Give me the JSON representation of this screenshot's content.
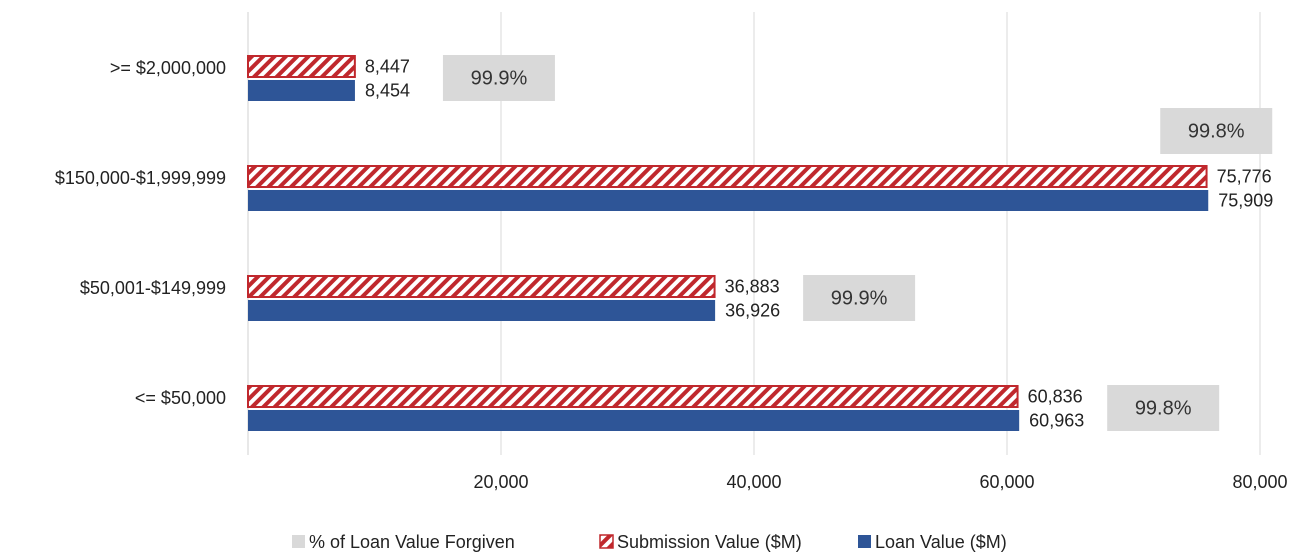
{
  "chart_data": {
    "type": "bar",
    "orientation": "horizontal",
    "categories": [
      ">= $2,000,000",
      "$150,000-$1,999,999",
      "$50,001-$149,999",
      "<= $50,000"
    ],
    "series": [
      {
        "name": "% of Loan Value Forgiven",
        "color": "#d9d9d9",
        "values": [
          99.9,
          99.8,
          99.9,
          99.8
        ],
        "value_labels": [
          "99.9%",
          "99.8%",
          "99.9%",
          "99.8%"
        ]
      },
      {
        "name": "Submission Value ($M)",
        "color": "#c0282d",
        "pattern": "hatch",
        "values": [
          8447,
          75776,
          36883,
          60836
        ],
        "value_labels": [
          "8,447",
          "75,776",
          "36,883",
          "60,836"
        ]
      },
      {
        "name": "Loan Value ($M)",
        "color": "#2e5597",
        "values": [
          8454,
          75909,
          36926,
          60963
        ],
        "value_labels": [
          "8,454",
          "75,909",
          "36,926",
          "60,963"
        ]
      }
    ],
    "xlim": [
      0,
      80000
    ],
    "xticks": [
      {
        "value": 20000,
        "label": "20,000"
      },
      {
        "value": 40000,
        "label": "40,000"
      },
      {
        "value": 60000,
        "label": "60,000"
      },
      {
        "value": 80000,
        "label": "80,000"
      }
    ],
    "grid": true,
    "legend": "bottom"
  }
}
